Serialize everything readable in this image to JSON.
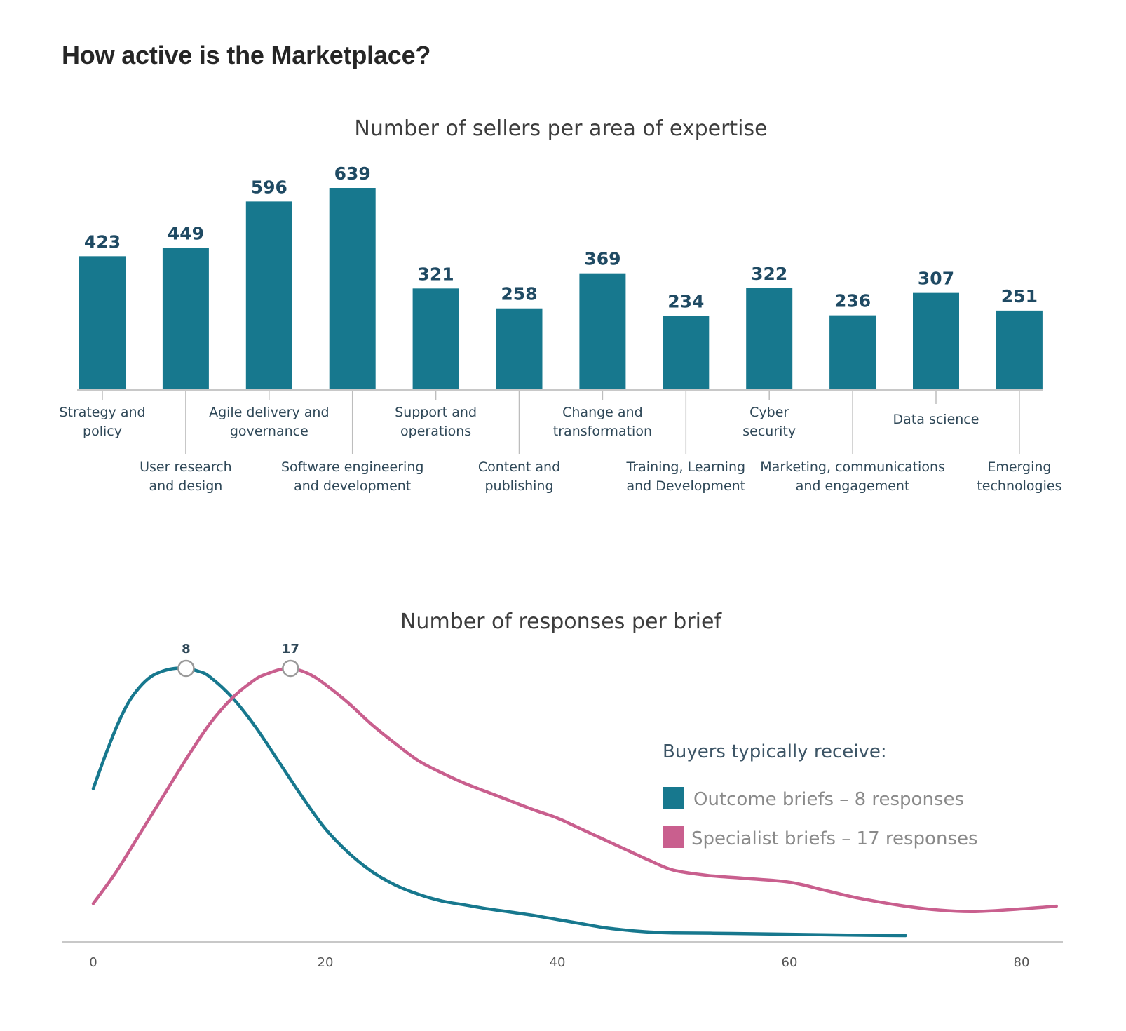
{
  "page": {
    "heading": "How active is the Marketplace?"
  },
  "chart_data": [
    {
      "type": "bar",
      "title": "Number of sellers per area of expertise",
      "categories": [
        [
          "Strategy and",
          "policy"
        ],
        [
          "User research",
          "and design"
        ],
        [
          "Agile delivery and",
          "governance"
        ],
        [
          "Software engineering",
          "and development"
        ],
        [
          "Support and",
          "operations"
        ],
        [
          "Content and",
          "publishing"
        ],
        [
          "Change and",
          "transformation"
        ],
        [
          "Training, Learning",
          "and Development"
        ],
        [
          "Cyber",
          "security"
        ],
        [
          "Marketing, communications",
          "and engagement"
        ],
        [
          "Data science"
        ],
        [
          "Emerging",
          "technologies"
        ]
      ],
      "values": [
        423,
        449,
        596,
        639,
        321,
        258,
        369,
        234,
        322,
        236,
        307,
        251
      ],
      "ylim": [
        0,
        639
      ],
      "grid": false,
      "legend": "none"
    },
    {
      "type": "line",
      "title": "Number of responses per brief",
      "xlabel": "",
      "ylabel": "",
      "x_ticks": [
        0,
        20,
        40,
        60,
        80
      ],
      "xlim": [
        0,
        83
      ],
      "ylim": [
        0,
        1
      ],
      "grid": false,
      "legend_title": "Buyers typically receive:",
      "legend_position": "right",
      "series": [
        {
          "name": "Outcome briefs – 8 responses",
          "color": "#17788e",
          "peak": {
            "x": 8,
            "label": "8"
          },
          "x": [
            0,
            1,
            2,
            3,
            4,
            5,
            6,
            7,
            8,
            9,
            10,
            12,
            14,
            16,
            18,
            20,
            22,
            24,
            26,
            28,
            30,
            32,
            34,
            36,
            38,
            40,
            42,
            44,
            46,
            48,
            50,
            55,
            60,
            65,
            70
          ],
          "y": [
            0.55,
            0.67,
            0.78,
            0.87,
            0.93,
            0.97,
            0.99,
            1.0,
            1.0,
            0.99,
            0.97,
            0.89,
            0.78,
            0.65,
            0.52,
            0.4,
            0.31,
            0.24,
            0.19,
            0.155,
            0.13,
            0.115,
            0.1,
            0.088,
            0.075,
            0.06,
            0.045,
            0.03,
            0.02,
            0.013,
            0.01,
            0.008,
            0.005,
            0.002,
            0.0
          ]
        },
        {
          "name": "Specialist briefs – 17 responses",
          "color": "#c95f8e",
          "peak": {
            "x": 17,
            "label": "17"
          },
          "x": [
            0,
            2,
            4,
            6,
            8,
            10,
            12,
            14,
            15,
            16,
            17,
            18,
            19,
            20,
            22,
            24,
            26,
            28,
            30,
            32,
            35,
            38,
            40,
            42,
            44,
            46,
            48,
            50,
            53,
            56,
            60,
            63,
            66,
            70,
            73,
            76,
            80,
            83
          ],
          "y": [
            0.12,
            0.24,
            0.38,
            0.52,
            0.66,
            0.79,
            0.89,
            0.96,
            0.98,
            0.995,
            1.0,
            0.99,
            0.97,
            0.94,
            0.87,
            0.79,
            0.72,
            0.655,
            0.61,
            0.57,
            0.52,
            0.47,
            0.44,
            0.4,
            0.36,
            0.32,
            0.28,
            0.245,
            0.225,
            0.215,
            0.2,
            0.17,
            0.14,
            0.11,
            0.095,
            0.09,
            0.1,
            0.11
          ]
        }
      ]
    }
  ]
}
